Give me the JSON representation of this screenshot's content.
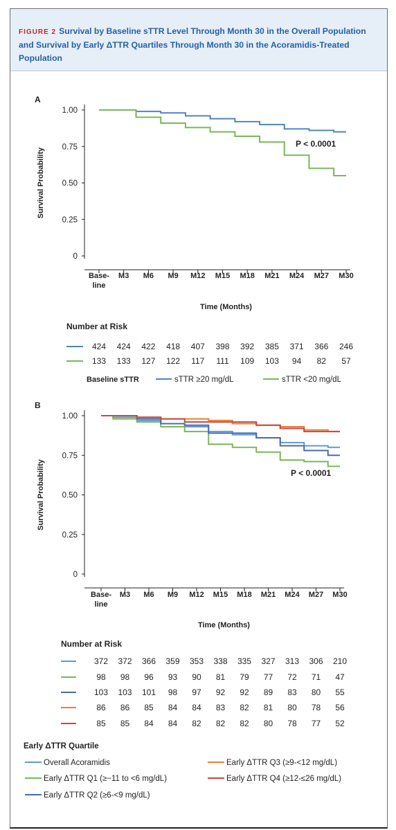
{
  "figure": {
    "label": "FIGURE 2",
    "title": "Survival by Baseline sTTR Level Through Month 30 in the Overall Population and Survival by Early ΔTTR Quartiles Through Month 30 in the Acoramidis-Treated Population"
  },
  "chart_data": [
    {
      "panel": "A",
      "type": "line",
      "ylabel": "Survival Probability",
      "xlabel": "Time (Months)",
      "ylim": [
        0,
        1
      ],
      "yticks": [
        "0",
        "0.25",
        "0.50",
        "0.75",
        "1.00"
      ],
      "yticks_values": [
        0,
        0.25,
        0.5,
        0.75,
        1.0
      ],
      "categories": [
        "Base-\nline",
        "M3",
        "M6",
        "M9",
        "M12",
        "M15",
        "M18",
        "M21",
        "M24",
        "M27",
        "M30"
      ],
      "annotation": "P < 0.0001",
      "series": [
        {
          "name": "sTTR ≥20 mg/dL",
          "color": "#4e84c4",
          "x": [
            0,
            3,
            6,
            9,
            12,
            15,
            18,
            21,
            24,
            27,
            30
          ],
          "values": [
            1.0,
            1.0,
            0.99,
            0.98,
            0.96,
            0.94,
            0.92,
            0.9,
            0.87,
            0.86,
            0.85
          ]
        },
        {
          "name": "sTTR <20 mg/dL",
          "color": "#78b856",
          "x": [
            0,
            3,
            6,
            9,
            12,
            15,
            18,
            21,
            24,
            27,
            30
          ],
          "values": [
            1.0,
            1.0,
            0.95,
            0.91,
            0.88,
            0.85,
            0.82,
            0.78,
            0.69,
            0.6,
            0.55
          ]
        }
      ],
      "risk_table": {
        "title": "Number at Risk",
        "rows": [
          {
            "color": "#4e84c4",
            "values": [
              "424",
              "424",
              "422",
              "418",
              "407",
              "398",
              "392",
              "385",
              "371",
              "366",
              "246"
            ]
          },
          {
            "color": "#78b856",
            "values": [
              "133",
              "133",
              "127",
              "122",
              "117",
              "111",
              "109",
              "103",
              "94",
              "82",
              "57"
            ]
          }
        ]
      },
      "legend": {
        "title": "Baseline sTTR",
        "entries": [
          {
            "label": "sTTR ≥20 mg/dL",
            "color": "#4e84c4"
          },
          {
            "label": "sTTR <20 mg/dL",
            "color": "#78b856"
          }
        ]
      }
    },
    {
      "panel": "B",
      "type": "line",
      "ylabel": "Survival Probability",
      "xlabel": "Time (Months)",
      "ylim": [
        0,
        1
      ],
      "yticks": [
        "0",
        "0.25",
        "0.50",
        "0.75",
        "1.00"
      ],
      "yticks_values": [
        0,
        0.25,
        0.5,
        0.75,
        1.0
      ],
      "categories": [
        "Base-\nline",
        "M3",
        "M6",
        "M9",
        "M12",
        "M15",
        "M18",
        "M21",
        "M24",
        "M27",
        "M30"
      ],
      "annotation": "P < 0.0001",
      "series": [
        {
          "name": "Overall Acoramidis",
          "color": "#5b9bd5",
          "x": [
            0,
            3,
            6,
            9,
            12,
            15,
            18,
            21,
            24,
            27,
            30
          ],
          "values": [
            1.0,
            0.99,
            0.97,
            0.95,
            0.93,
            0.9,
            0.88,
            0.86,
            0.83,
            0.81,
            0.8
          ]
        },
        {
          "name": "Early ΔTTR Q1 (≥−11 to <6 mg/dL)",
          "color": "#78b856",
          "x": [
            0,
            3,
            6,
            9,
            12,
            15,
            18,
            21,
            24,
            27,
            30
          ],
          "values": [
            1.0,
            0.98,
            0.96,
            0.93,
            0.9,
            0.82,
            0.8,
            0.77,
            0.72,
            0.71,
            0.68
          ]
        },
        {
          "name": "Early ΔTTR Q2 (≥6-<9 mg/dL)",
          "color": "#4a69b0",
          "x": [
            0,
            3,
            6,
            9,
            12,
            15,
            18,
            21,
            24,
            27,
            30
          ],
          "values": [
            1.0,
            1.0,
            0.98,
            0.95,
            0.94,
            0.89,
            0.89,
            0.86,
            0.81,
            0.78,
            0.75
          ]
        },
        {
          "name": "Early ΔTTR Q3 (≥9-<12 mg/dL)",
          "color": "#ee7d31",
          "x": [
            0,
            3,
            6,
            9,
            12,
            15,
            18,
            21,
            24,
            27,
            30
          ],
          "values": [
            1.0,
            1.0,
            0.99,
            0.98,
            0.98,
            0.97,
            0.95,
            0.94,
            0.93,
            0.91,
            0.9
          ]
        },
        {
          "name": "Early ΔTTR Q4 (≥12-≤26 mg/dL)",
          "color": "#c9473f",
          "x": [
            0,
            3,
            6,
            9,
            12,
            15,
            18,
            21,
            24,
            27,
            30
          ],
          "values": [
            1.0,
            1.0,
            0.99,
            0.98,
            0.96,
            0.96,
            0.96,
            0.94,
            0.92,
            0.9,
            0.9
          ]
        }
      ],
      "risk_table": {
        "title": "Number at Risk",
        "rows": [
          {
            "color": "#5b9bd5",
            "values": [
              "372",
              "372",
              "366",
              "359",
              "353",
              "338",
              "335",
              "327",
              "313",
              "306",
              "210"
            ]
          },
          {
            "color": "#78b856",
            "values": [
              "98",
              "98",
              "96",
              "93",
              "90",
              "81",
              "79",
              "77",
              "72",
              "71",
              "47"
            ]
          },
          {
            "color": "#4a69b0",
            "values": [
              "103",
              "103",
              "101",
              "98",
              "97",
              "92",
              "92",
              "89",
              "83",
              "80",
              "55"
            ]
          },
          {
            "color": "#ee7d31",
            "values": [
              "86",
              "86",
              "85",
              "84",
              "84",
              "83",
              "82",
              "81",
              "80",
              "78",
              "56"
            ]
          },
          {
            "color": "#c9473f",
            "values": [
              "85",
              "85",
              "84",
              "84",
              "82",
              "82",
              "82",
              "80",
              "78",
              "77",
              "52"
            ]
          }
        ]
      },
      "legend": {
        "title": "Early ΔTTR Quartile",
        "entries": [
          {
            "label": "Overall Acoramidis",
            "color": "#5b9bd5"
          },
          {
            "label": "Early ΔTTR Q1 (≥−11 to <6 mg/dL)",
            "color": "#78b856"
          },
          {
            "label": "Early ΔTTR Q2 (≥6-<9 mg/dL)",
            "color": "#4a69b0"
          },
          {
            "label": "Early ΔTTR Q3 (≥9-<12 mg/dL)",
            "color": "#ee7d31"
          },
          {
            "label": "Early ΔTTR Q4 (≥12-≤26 mg/dL)",
            "color": "#c9473f"
          }
        ]
      }
    }
  ]
}
